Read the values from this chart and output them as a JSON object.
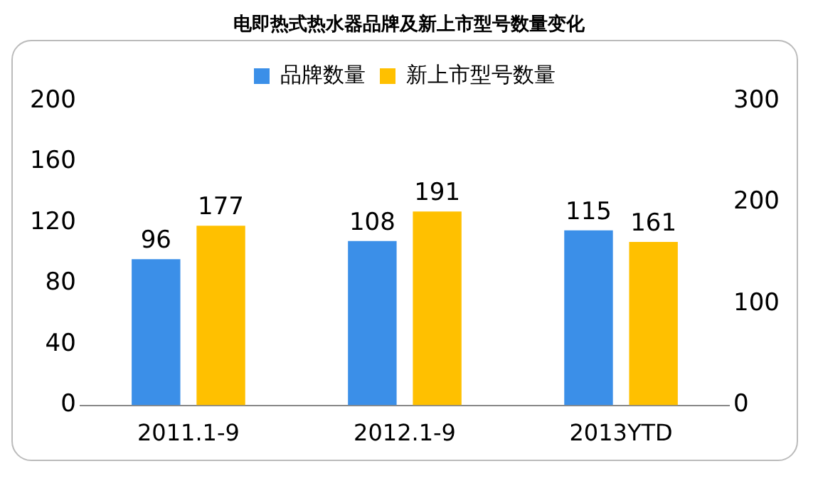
{
  "chart_data": {
    "type": "bar",
    "title": "电即热式热水器品牌及新上市型号数量变化",
    "categories": [
      "2011.1-9",
      "2012.1-9",
      "2013YTD"
    ],
    "series": [
      {
        "name": "品牌数量",
        "color": "#3b8fe8",
        "values": [
          96,
          108,
          115
        ]
      },
      {
        "name": "新上市型号数量",
        "color": "#ffc000",
        "values": [
          177,
          191,
          161
        ],
        "axis": "y2"
      }
    ],
    "ylim": [
      0,
      200
    ],
    "yticks": [
      0,
      40,
      80,
      120,
      160,
      200
    ],
    "y2lim": [
      0,
      300
    ],
    "y2ticks": [
      0,
      100,
      200,
      300
    ],
    "legend": "top",
    "data_labels": true
  }
}
